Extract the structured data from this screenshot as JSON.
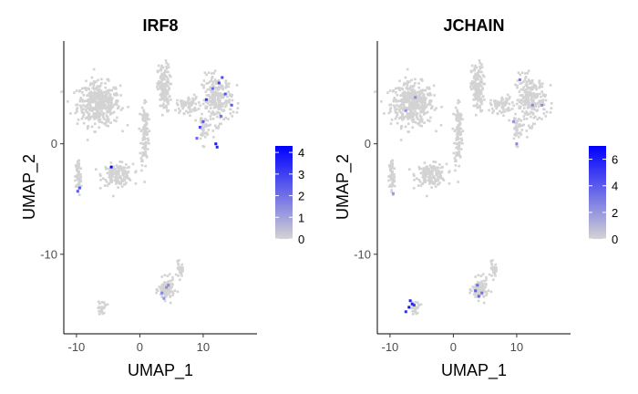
{
  "chart_data": [
    {
      "type": "scatter",
      "title": "IRF8",
      "xlabel": "UMAP_1",
      "ylabel": "UMAP_2",
      "xlim": [
        -12,
        18.5
      ],
      "ylim": [
        -17.2,
        9.3
      ],
      "x_ticks": [
        -10,
        0,
        10
      ],
      "y_ticks": [
        0,
        -10
      ],
      "grid": false,
      "legend": {
        "placement": "right",
        "type": "colorbar",
        "min": 0,
        "max": 4.3,
        "ticks": [
          0,
          1,
          2,
          3,
          4
        ],
        "colors": [
          "#d3d3d3",
          "#0000ff"
        ]
      },
      "highlights": [
        {
          "x": 12,
          "y": 0,
          "v": 3.8
        },
        {
          "x": 12.2,
          "y": -0.3,
          "v": 3.5
        },
        {
          "x": 9.5,
          "y": 1.5,
          "v": 2.8
        },
        {
          "x": 10.5,
          "y": 4,
          "v": 3.2
        },
        {
          "x": 12.5,
          "y": 5.5,
          "v": 3.0
        },
        {
          "x": 13.5,
          "y": 4.5,
          "v": 2.6
        },
        {
          "x": 14.5,
          "y": 3.5,
          "v": 2.4
        },
        {
          "x": 11.5,
          "y": 5,
          "v": 2.2
        },
        {
          "x": 12.8,
          "y": 2.5,
          "v": 2.0
        },
        {
          "x": 10,
          "y": 2,
          "v": 2.5
        },
        {
          "x": 9,
          "y": 0.5,
          "v": 2.2
        },
        {
          "x": 13,
          "y": 6,
          "v": 2.8
        },
        {
          "x": -4.5,
          "y": -2.1,
          "v": 4.2
        },
        {
          "x": -9.5,
          "y": -4,
          "v": 2.6
        },
        {
          "x": -9.8,
          "y": -4.3,
          "v": 2.4
        },
        {
          "x": 3.5,
          "y": -13.5,
          "v": 1.6
        },
        {
          "x": 4.2,
          "y": -13,
          "v": 1.4
        },
        {
          "x": 3.8,
          "y": -14,
          "v": 1.3
        },
        {
          "x": 4.5,
          "y": -12.8,
          "v": 1.5
        }
      ]
    },
    {
      "type": "scatter",
      "title": "JCHAIN",
      "xlabel": "UMAP_1",
      "ylabel": "UMAP_2",
      "xlim": [
        -12,
        18.5
      ],
      "ylim": [
        -17.2,
        9.3
      ],
      "x_ticks": [
        -10,
        0,
        10
      ],
      "y_ticks": [
        0,
        -10
      ],
      "grid": false,
      "legend": {
        "placement": "right",
        "type": "colorbar",
        "min": 0,
        "max": 7,
        "ticks": [
          0,
          2,
          4,
          6
        ],
        "colors": [
          "#d3d3d3",
          "#0000ff"
        ]
      },
      "highlights": [
        {
          "x": -7,
          "y": -14.8,
          "v": 6.5
        },
        {
          "x": -6.5,
          "y": -14.5,
          "v": 6.0
        },
        {
          "x": -6.8,
          "y": -14.2,
          "v": 5.8
        },
        {
          "x": -7.5,
          "y": -15.2,
          "v": 5.5
        },
        {
          "x": -6.2,
          "y": -14.6,
          "v": 5.2
        },
        {
          "x": 3.5,
          "y": -13.3,
          "v": 4.0
        },
        {
          "x": 4,
          "y": -13.8,
          "v": 3.8
        },
        {
          "x": 3.8,
          "y": -12.8,
          "v": 3.5
        },
        {
          "x": 4.5,
          "y": -13.5,
          "v": 3.2
        },
        {
          "x": 10.5,
          "y": 5.8,
          "v": 3.0
        },
        {
          "x": 12.5,
          "y": 3.5,
          "v": 2.5
        },
        {
          "x": 9.5,
          "y": 2,
          "v": 2.2
        },
        {
          "x": 14,
          "y": 3.5,
          "v": 2.4
        },
        {
          "x": 10,
          "y": 0,
          "v": 2.6
        },
        {
          "x": -9.5,
          "y": -4.5,
          "v": 2.0
        },
        {
          "x": -6,
          "y": 4.2,
          "v": 2.4
        },
        {
          "x": -7.5,
          "y": 3,
          "v": 2.0
        }
      ]
    }
  ]
}
